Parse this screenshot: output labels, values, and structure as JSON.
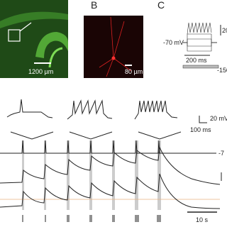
{
  "panels": {
    "b": {
      "label": "B",
      "scale": "80 µm"
    },
    "c": {
      "label": "C",
      "amp": "20",
      "rest": "-70 mV",
      "time": "200 ms",
      "current": "-150"
    },
    "a": {
      "scale": "1200 µm"
    }
  },
  "recording": {
    "inset_amp": "20 mV",
    "inset_time": "100 ms",
    "rest_label": "-7",
    "time_scale": "10 s"
  }
}
